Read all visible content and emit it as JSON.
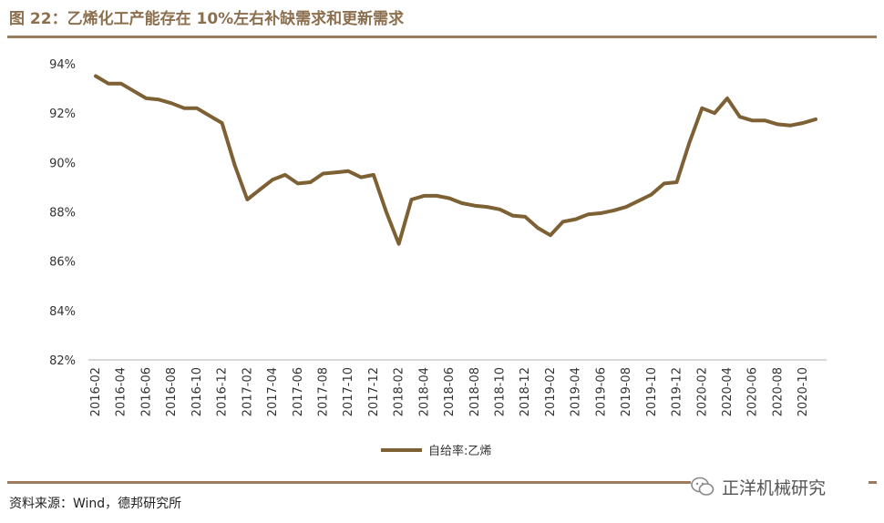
{
  "title": "图 22：乙烯化工产能存在 10%左右补缺需求和更新需求",
  "source": "资料来源：Wind，德邦研究所",
  "watermark": "正洋机械研究",
  "colors": {
    "line": "#7d6034",
    "rule": "#9b7b5a",
    "title": "#8b6f4e",
    "grid": "#d9d9d9"
  },
  "chart_data": {
    "type": "line",
    "x": [
      "2016-02",
      "2016-03",
      "2016-04",
      "2016-05",
      "2016-06",
      "2016-07",
      "2016-08",
      "2016-09",
      "2016-10",
      "2016-11",
      "2016-12",
      "2017-01",
      "2017-02",
      "2017-03",
      "2017-04",
      "2017-05",
      "2017-06",
      "2017-07",
      "2017-08",
      "2017-09",
      "2017-10",
      "2017-11",
      "2017-12",
      "2018-01",
      "2018-02",
      "2018-03",
      "2018-04",
      "2018-05",
      "2018-06",
      "2018-07",
      "2018-08",
      "2018-09",
      "2018-10",
      "2018-11",
      "2018-12",
      "2019-01",
      "2019-02",
      "2019-03",
      "2019-04",
      "2019-05",
      "2019-06",
      "2019-07",
      "2019-08",
      "2019-09",
      "2019-10",
      "2019-11",
      "2019-12",
      "2020-01",
      "2020-02",
      "2020-03",
      "2020-04",
      "2020-05",
      "2020-06",
      "2020-07",
      "2020-08",
      "2020-09",
      "2020-10",
      "2020-11"
    ],
    "tick_labels": [
      "2016-02",
      "2016-04",
      "2016-06",
      "2016-08",
      "2016-10",
      "2016-12",
      "2017-02",
      "2017-04",
      "2017-06",
      "2017-08",
      "2017-10",
      "2017-12",
      "2018-02",
      "2018-04",
      "2018-06",
      "2018-08",
      "2018-10",
      "2018-12",
      "2019-02",
      "2019-04",
      "2019-06",
      "2019-08",
      "2019-10",
      "2019-12",
      "2020-02",
      "2020-04",
      "2020-06",
      "2020-08",
      "2020-10"
    ],
    "series": [
      {
        "name": "自给率:乙烯",
        "values": [
          93.5,
          93.2,
          93.2,
          92.9,
          92.6,
          92.55,
          92.4,
          92.2,
          92.2,
          91.9,
          91.6,
          89.9,
          88.5,
          88.9,
          89.3,
          89.5,
          89.15,
          89.2,
          89.55,
          89.6,
          89.65,
          89.4,
          89.5,
          88.0,
          86.7,
          88.5,
          88.65,
          88.65,
          88.55,
          88.35,
          88.25,
          88.2,
          88.1,
          87.85,
          87.8,
          87.35,
          87.05,
          87.6,
          87.7,
          87.9,
          87.95,
          88.05,
          88.2,
          88.45,
          88.7,
          89.15,
          89.2,
          90.8,
          92.2,
          92.0,
          92.6,
          91.85,
          91.7,
          91.7,
          91.55,
          91.5,
          91.6,
          91.75
        ]
      }
    ],
    "yticks": [
      "94%",
      "92%",
      "90%",
      "88%",
      "86%",
      "84%",
      "82%"
    ],
    "ylim": [
      82,
      94
    ],
    "legend_position": "bottom-center",
    "grid": false
  }
}
